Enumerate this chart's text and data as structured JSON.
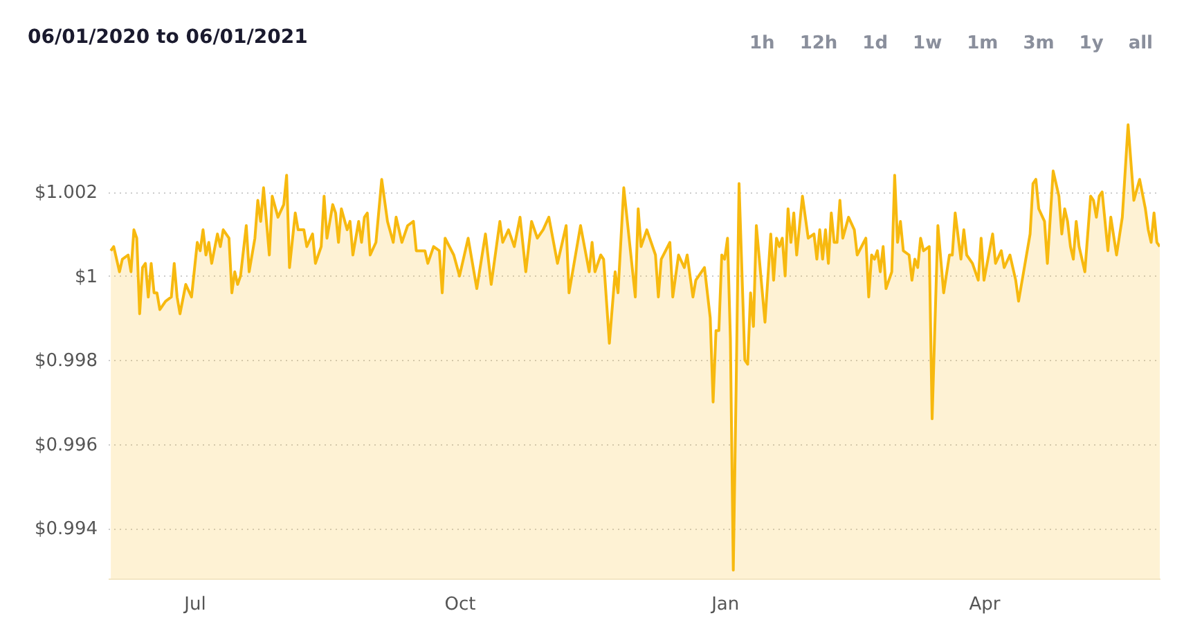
{
  "chart_data": {
    "type": "area",
    "title": "06/01/2020 to 06/01/2021",
    "annotations": [
      "1h",
      "12h",
      "1d",
      "1w",
      "1m",
      "3m",
      "1y",
      "all"
    ],
    "x": [
      "2020-06-02",
      "2020-06-03",
      "2020-06-05",
      "2020-06-06",
      "2020-06-08",
      "2020-06-09",
      "2020-06-10",
      "2020-06-11",
      "2020-06-12",
      "2020-06-13",
      "2020-06-14",
      "2020-06-15",
      "2020-06-16",
      "2020-06-17",
      "2020-06-18",
      "2020-06-19",
      "2020-06-21",
      "2020-06-23",
      "2020-06-24",
      "2020-06-25",
      "2020-06-26",
      "2020-06-28",
      "2020-06-30",
      "2020-07-02",
      "2020-07-03",
      "2020-07-04",
      "2020-07-05",
      "2020-07-06",
      "2020-07-07",
      "2020-07-09",
      "2020-07-10",
      "2020-07-11",
      "2020-07-13",
      "2020-07-14",
      "2020-07-15",
      "2020-07-16",
      "2020-07-17",
      "2020-07-19",
      "2020-07-20",
      "2020-07-22",
      "2020-07-23",
      "2020-07-24",
      "2020-07-25",
      "2020-07-27",
      "2020-07-28",
      "2020-07-30",
      "2020-08-01",
      "2020-08-02",
      "2020-08-03",
      "2020-08-05",
      "2020-08-06",
      "2020-08-08",
      "2020-08-09",
      "2020-08-11",
      "2020-08-12",
      "2020-08-14",
      "2020-08-15",
      "2020-08-16",
      "2020-08-18",
      "2020-08-19",
      "2020-08-20",
      "2020-08-21",
      "2020-08-23",
      "2020-08-24",
      "2020-08-25",
      "2020-08-27",
      "2020-08-28",
      "2020-08-29",
      "2020-08-30",
      "2020-08-31",
      "2020-09-02",
      "2020-09-04",
      "2020-09-06",
      "2020-09-08",
      "2020-09-09",
      "2020-09-11",
      "2020-09-13",
      "2020-09-15",
      "2020-09-16",
      "2020-09-19",
      "2020-09-20",
      "2020-09-22",
      "2020-09-24",
      "2020-09-25",
      "2020-09-26",
      "2020-09-29",
      "2020-10-01",
      "2020-10-04",
      "2020-10-07",
      "2020-10-10",
      "2020-10-12",
      "2020-10-15",
      "2020-10-16",
      "2020-10-18",
      "2020-10-20",
      "2020-10-22",
      "2020-10-24",
      "2020-10-26",
      "2020-10-28",
      "2020-10-30",
      "2020-11-01",
      "2020-11-04",
      "2020-11-07",
      "2020-11-08",
      "2020-11-12",
      "2020-11-15",
      "2020-11-16",
      "2020-11-17",
      "2020-11-19",
      "2020-11-20",
      "2020-11-22",
      "2020-11-24",
      "2020-11-25",
      "2020-11-27",
      "2020-12-01",
      "2020-12-02",
      "2020-12-03",
      "2020-12-05",
      "2020-12-08",
      "2020-12-09",
      "2020-12-10",
      "2020-12-13",
      "2020-12-14",
      "2020-12-16",
      "2020-12-18",
      "2020-12-19",
      "2020-12-21",
      "2020-12-22",
      "2020-12-25",
      "2020-12-27",
      "2020-12-28",
      "2020-12-29",
      "2020-12-30",
      "2020-12-31",
      "2021-01-01",
      "2021-01-02",
      "2021-01-03",
      "2021-01-04",
      "2021-01-05",
      "2021-01-06",
      "2021-01-08",
      "2021-01-09",
      "2021-01-10",
      "2021-01-11",
      "2021-01-12",
      "2021-01-15",
      "2021-01-17",
      "2021-01-18",
      "2021-01-19",
      "2021-01-20",
      "2021-01-21",
      "2021-01-22",
      "2021-01-23",
      "2021-01-24",
      "2021-01-25",
      "2021-01-26",
      "2021-01-28",
      "2021-01-30",
      "2021-02-01",
      "2021-02-02",
      "2021-02-03",
      "2021-02-04",
      "2021-02-05",
      "2021-02-06",
      "2021-02-07",
      "2021-02-08",
      "2021-02-09",
      "2021-02-10",
      "2021-02-11",
      "2021-02-13",
      "2021-02-15",
      "2021-02-16",
      "2021-02-19",
      "2021-02-20",
      "2021-02-21",
      "2021-02-22",
      "2021-02-23",
      "2021-02-24",
      "2021-02-25",
      "2021-02-26",
      "2021-02-28",
      "2021-03-01",
      "2021-03-02",
      "2021-03-03",
      "2021-03-04",
      "2021-03-06",
      "2021-03-07",
      "2021-03-08",
      "2021-03-09",
      "2021-03-10",
      "2021-03-11",
      "2021-03-13",
      "2021-03-14",
      "2021-03-16",
      "2021-03-18",
      "2021-03-20",
      "2021-03-21",
      "2021-03-22",
      "2021-03-24",
      "2021-03-25",
      "2021-03-26",
      "2021-03-28",
      "2021-03-30",
      "2021-03-31",
      "2021-04-01",
      "2021-04-04",
      "2021-04-05",
      "2021-04-07",
      "2021-04-08",
      "2021-04-10",
      "2021-04-12",
      "2021-04-13",
      "2021-04-17",
      "2021-04-18",
      "2021-04-19",
      "2021-04-20",
      "2021-04-22",
      "2021-04-23",
      "2021-04-25",
      "2021-04-27",
      "2021-04-28",
      "2021-04-29",
      "2021-04-30",
      "2021-05-01",
      "2021-05-02",
      "2021-05-03",
      "2021-05-04",
      "2021-05-06",
      "2021-05-08",
      "2021-05-09",
      "2021-05-10",
      "2021-05-11",
      "2021-05-12",
      "2021-05-14",
      "2021-05-15",
      "2021-05-17",
      "2021-05-19",
      "2021-05-21",
      "2021-05-23",
      "2021-05-25",
      "2021-05-27",
      "2021-05-28",
      "2021-05-29",
      "2021-05-30",
      "2021-05-31",
      "2021-06-01"
    ],
    "series": [
      {
        "color": "#f7b90f",
        "values": [
          1.0006,
          1.0007,
          1.0001,
          1.0004,
          1.0005,
          1.0001,
          1.0011,
          1.0009,
          0.9991,
          1.0002,
          1.0003,
          0.9995,
          1.0003,
          0.9996,
          0.9996,
          0.9992,
          0.9994,
          0.9995,
          1.0003,
          0.9995,
          0.9991,
          0.9998,
          0.9995,
          1.0008,
          1.0006,
          1.0011,
          1.0005,
          1.0008,
          1.0003,
          1.001,
          1.0007,
          1.0011,
          1.0009,
          0.9996,
          1.0001,
          0.9998,
          1.0,
          1.0012,
          1.0001,
          1.0009,
          1.0018,
          1.0013,
          1.0021,
          1.0005,
          1.0019,
          1.0014,
          1.0017,
          1.0024,
          1.0002,
          1.0015,
          1.0011,
          1.0011,
          1.0007,
          1.001,
          1.0003,
          1.0007,
          1.0019,
          1.0009,
          1.0017,
          1.0015,
          1.0008,
          1.0016,
          1.0011,
          1.0013,
          1.0005,
          1.0013,
          1.0008,
          1.0014,
          1.0015,
          1.0005,
          1.0008,
          1.0023,
          1.0013,
          1.0008,
          1.0014,
          1.0008,
          1.0012,
          1.0013,
          1.0006,
          1.0006,
          1.0003,
          1.0007,
          1.0006,
          0.9996,
          1.0009,
          1.0005,
          1.0,
          1.0009,
          0.9997,
          1.001,
          0.9998,
          1.0013,
          1.0008,
          1.0011,
          1.0007,
          1.0014,
          1.0001,
          1.0013,
          1.0009,
          1.0011,
          1.0014,
          1.0003,
          1.0012,
          0.9996,
          1.0012,
          1.0001,
          1.0008,
          1.0001,
          1.0005,
          1.0004,
          0.9984,
          1.0001,
          0.9996,
          1.0021,
          0.9995,
          1.0016,
          1.0007,
          1.0011,
          1.0005,
          0.9995,
          1.0004,
          1.0008,
          0.9995,
          1.0005,
          1.0002,
          1.0005,
          0.9995,
          0.9999,
          1.0002,
          0.999,
          0.997,
          0.9987,
          0.9987,
          1.0005,
          1.0004,
          1.0009,
          0.9985,
          0.993,
          0.9974,
          1.0022,
          0.998,
          0.9979,
          0.9996,
          0.9988,
          1.0012,
          0.9989,
          1.001,
          0.9999,
          1.0009,
          1.0007,
          1.0009,
          1.0,
          1.0016,
          1.0008,
          1.0015,
          1.0005,
          1.0019,
          1.0009,
          1.001,
          1.0004,
          1.0011,
          1.0004,
          1.0011,
          1.0003,
          1.0015,
          1.0008,
          1.0008,
          1.0018,
          1.0009,
          1.0014,
          1.0011,
          1.0005,
          1.0009,
          0.9995,
          1.0005,
          1.0004,
          1.0006,
          1.0001,
          1.0007,
          0.9997,
          1.0001,
          1.0024,
          1.0008,
          1.0013,
          1.0006,
          1.0005,
          0.9999,
          1.0004,
          1.0002,
          1.0009,
          1.0006,
          1.0007,
          0.9966,
          1.0012,
          0.9996,
          1.0005,
          1.0005,
          1.0015,
          1.0004,
          1.0011,
          1.0005,
          1.0003,
          0.9999,
          1.0009,
          0.9999,
          1.001,
          1.0003,
          1.0006,
          1.0002,
          1.0005,
          0.9999,
          0.9994,
          1.001,
          1.0022,
          1.0023,
          1.0016,
          1.0013,
          1.0003,
          1.0025,
          1.0019,
          1.001,
          1.0016,
          1.0013,
          1.0007,
          1.0004,
          1.0013,
          1.0007,
          1.0001,
          1.0019,
          1.0018,
          1.0014,
          1.0019,
          1.002,
          1.0006,
          1.0014,
          1.0005,
          1.0014,
          1.0036,
          1.0018,
          1.0023,
          1.0016,
          1.0011,
          1.0008,
          1.0015,
          1.0008,
          1.0007
        ]
      }
    ],
    "xlim": [
      "2020-06-01",
      "2021-06-01"
    ],
    "xticks": [
      {
        "value": "2020-07-01",
        "label": "Jul"
      },
      {
        "value": "2020-10-01",
        "label": "Oct"
      },
      {
        "value": "2021-01-01",
        "label": "Jan"
      },
      {
        "value": "2021-04-01",
        "label": "Apr"
      }
    ],
    "ylim": [
      0.9928,
      1.004
    ],
    "yticks": [
      {
        "value": 0.994,
        "label": "$0.994"
      },
      {
        "value": 0.996,
        "label": "$0.996"
      },
      {
        "value": 0.998,
        "label": "$0.998"
      },
      {
        "value": 1,
        "label": "$1"
      },
      {
        "value": 1.002,
        "label": "$1.002"
      }
    ],
    "grid": "y",
    "marker": "none",
    "line_style": "solid"
  }
}
